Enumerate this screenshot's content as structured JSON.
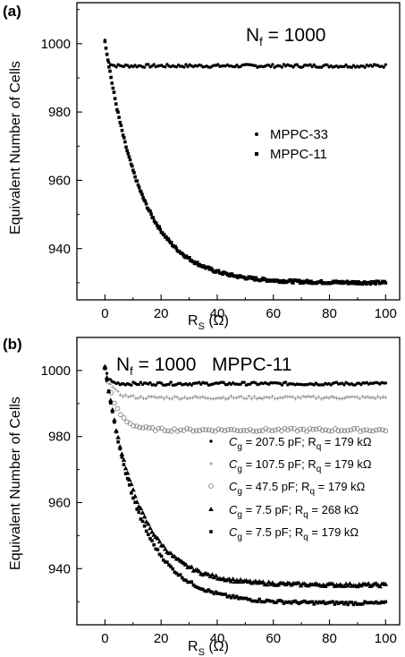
{
  "chart_data": [
    {
      "type": "scatter",
      "panel_label": "(a)",
      "annotation": {
        "main": "N",
        "sub": "f",
        "rest": " = 1000"
      },
      "xlabel": {
        "main": "R",
        "sub": "S",
        "unit": " (Ω)"
      },
      "ylabel": "Equivalent Number of Cells",
      "xlim": [
        -10,
        105
      ],
      "ylim": [
        925,
        1012
      ],
      "xticks": [
        0,
        20,
        40,
        60,
        80,
        100
      ],
      "yticks": [
        940,
        960,
        980,
        1000
      ],
      "grid": false,
      "legend": "middle-right",
      "series": [
        {
          "name": "MPPC-33",
          "marker": "dot",
          "model": {
            "y0": 1001,
            "yinf": 993.5,
            "tau": 0.8
          },
          "x_range": [
            0,
            100
          ],
          "n_points": 150
        },
        {
          "name": "MPPC-11",
          "marker": "square",
          "model": {
            "y0": 1001,
            "yinf": 930,
            "tau": 13
          },
          "x_range": [
            0,
            100
          ],
          "n_points": 280
        }
      ]
    },
    {
      "type": "scatter",
      "panel_label": "(b)",
      "annotation": {
        "main": "N",
        "sub": "f",
        "rest": " = 1000   MPPC-11"
      },
      "xlabel": {
        "main": "R",
        "sub": "S",
        "unit": " (Ω)"
      },
      "ylabel": "Equivalent Number of Cells",
      "xlim": [
        -10,
        105
      ],
      "ylim": [
        923,
        1010
      ],
      "xticks": [
        0,
        20,
        40,
        60,
        80,
        100
      ],
      "yticks": [
        940,
        960,
        980,
        1000
      ],
      "grid": false,
      "legend": "middle-right",
      "series": [
        {
          "cg": "207.5",
          "rq": "179",
          "marker": "dot",
          "model": {
            "y0": 1001,
            "yinf": 996,
            "tau": 1.2
          },
          "x_range": [
            0,
            100
          ],
          "n_points": 150
        },
        {
          "cg": "107.5",
          "rq": "179",
          "marker": "plus",
          "model": {
            "y0": 1001,
            "yinf": 991.8,
            "tau": 2.5
          },
          "x_range": [
            0,
            100
          ],
          "n_points": 110
        },
        {
          "cg": " 47.5",
          "rq": "179",
          "marker": "circle",
          "model": {
            "y0": 1001,
            "yinf": 982,
            "tau": 4
          },
          "x_range": [
            0,
            100
          ],
          "n_points": 90
        },
        {
          "cg": "  7.5",
          "rq": "268",
          "marker": "triangle",
          "model": {
            "y0": 1001,
            "yinf": 935,
            "tau": 12
          },
          "x_range": [
            0,
            100
          ],
          "n_points": 150
        },
        {
          "cg": "  7.5",
          "rq": "179",
          "marker": "square",
          "model": {
            "y0": 1001,
            "yinf": 929.5,
            "tau": 12.5
          },
          "x_range": [
            0,
            100
          ],
          "n_points": 150
        }
      ]
    }
  ],
  "legend_parts": {
    "c": "C",
    "g": "g",
    "eq_pf": " pF; R",
    "q": "q",
    "eq_k": " = ",
    "unit": " kΩ"
  }
}
